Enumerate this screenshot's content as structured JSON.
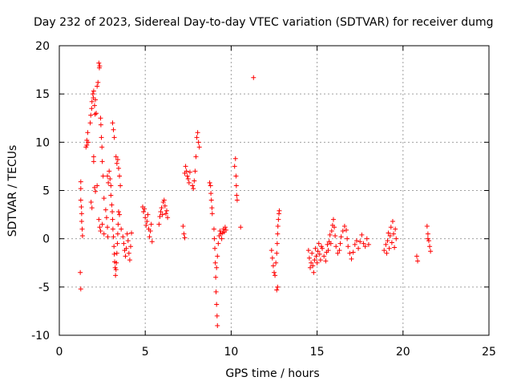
{
  "chart_data": {
    "type": "scatter",
    "title": "Day 232 of 2023, Sidereal Day-to-day VTEC variation (SDTVAR) for receiver dumg",
    "xlabel": "GPS time / hours",
    "ylabel": "SDTVAR / TECUs",
    "xlim": [
      0,
      25
    ],
    "ylim": [
      -10,
      20
    ],
    "xticks": [
      0,
      5,
      10,
      15,
      20,
      25
    ],
    "yticks": [
      -10,
      -5,
      0,
      5,
      10,
      15,
      20
    ],
    "xtick_labels": [
      "0",
      "5",
      "10",
      "15",
      "20",
      "25"
    ],
    "ytick_labels": [
      "-10",
      "-5",
      "0",
      "5",
      "10",
      "15",
      "20"
    ],
    "grid": true,
    "marker": "+",
    "color": "#ff0000",
    "series": [
      {
        "name": "SDTVAR",
        "points": [
          [
            1.25,
            5.9
          ],
          [
            1.25,
            5.2
          ],
          [
            1.25,
            4.0
          ],
          [
            1.28,
            3.3
          ],
          [
            1.3,
            2.6
          ],
          [
            1.3,
            1.8
          ],
          [
            1.33,
            1.0
          ],
          [
            1.35,
            0.3
          ],
          [
            1.22,
            -3.5
          ],
          [
            1.25,
            -5.2
          ],
          [
            1.55,
            9.5
          ],
          [
            1.6,
            10.2
          ],
          [
            1.6,
            9.7
          ],
          [
            1.65,
            11.0
          ],
          [
            1.68,
            10.0
          ],
          [
            1.8,
            12.0
          ],
          [
            1.83,
            12.8
          ],
          [
            1.88,
            13.5
          ],
          [
            1.9,
            14.2
          ],
          [
            1.95,
            15.0
          ],
          [
            1.98,
            14.6
          ],
          [
            2.0,
            15.3
          ],
          [
            2.05,
            13.8
          ],
          [
            2.08,
            12.9
          ],
          [
            2.1,
            14.4
          ],
          [
            2.15,
            13.0
          ],
          [
            2.2,
            15.8
          ],
          [
            2.25,
            16.2
          ],
          [
            2.3,
            18.2
          ],
          [
            2.33,
            17.7
          ],
          [
            2.35,
            17.9
          ],
          [
            2.4,
            12.5
          ],
          [
            2.42,
            11.8
          ],
          [
            2.45,
            10.5
          ],
          [
            2.48,
            9.5
          ],
          [
            2.5,
            8.0
          ],
          [
            2.55,
            6.5
          ],
          [
            1.85,
            3.8
          ],
          [
            1.9,
            3.2
          ],
          [
            2.0,
            8.5
          ],
          [
            2.0,
            8.0
          ],
          [
            2.05,
            5.3
          ],
          [
            2.1,
            4.9
          ],
          [
            2.2,
            5.5
          ],
          [
            2.3,
            2.0
          ],
          [
            2.35,
            1.2
          ],
          [
            2.4,
            0.8
          ],
          [
            2.5,
            1.5
          ],
          [
            2.6,
            0.5
          ],
          [
            2.6,
            4.2
          ],
          [
            2.7,
            3.0
          ],
          [
            2.75,
            2.2
          ],
          [
            2.8,
            1.2
          ],
          [
            2.82,
            0.2
          ],
          [
            2.8,
            6.5
          ],
          [
            2.85,
            5.8
          ],
          [
            2.9,
            7.0
          ],
          [
            2.95,
            6.2
          ],
          [
            3.0,
            5.5
          ],
          [
            3.0,
            4.5
          ],
          [
            3.05,
            3.5
          ],
          [
            3.08,
            2.8
          ],
          [
            3.1,
            2.0
          ],
          [
            3.12,
            1.0
          ],
          [
            3.15,
            0.2
          ],
          [
            3.18,
            -0.8
          ],
          [
            3.2,
            -1.6
          ],
          [
            3.22,
            -2.4
          ],
          [
            3.25,
            -3.0
          ],
          [
            3.27,
            -3.8
          ],
          [
            3.3,
            -3.2
          ],
          [
            3.32,
            -2.5
          ],
          [
            3.35,
            -1.5
          ],
          [
            3.38,
            -0.5
          ],
          [
            3.4,
            0.5
          ],
          [
            3.42,
            1.5
          ],
          [
            3.45,
            2.8
          ],
          [
            3.1,
            12.0
          ],
          [
            3.15,
            11.3
          ],
          [
            3.2,
            10.5
          ],
          [
            3.3,
            8.5
          ],
          [
            3.35,
            7.8
          ],
          [
            3.4,
            8.2
          ],
          [
            3.45,
            7.3
          ],
          [
            3.5,
            6.5
          ],
          [
            3.55,
            5.5
          ],
          [
            3.5,
            2.5
          ],
          [
            3.6,
            1.0
          ],
          [
            3.7,
            0.2
          ],
          [
            3.75,
            -0.5
          ],
          [
            3.8,
            -1.2
          ],
          [
            3.85,
            -1.8
          ],
          [
            3.9,
            -1.0
          ],
          [
            3.95,
            0.5
          ],
          [
            4.0,
            -0.2
          ],
          [
            4.05,
            -1.5
          ],
          [
            4.1,
            -2.2
          ],
          [
            4.15,
            -0.8
          ],
          [
            4.2,
            0.6
          ],
          [
            4.85,
            3.3
          ],
          [
            4.9,
            2.8
          ],
          [
            4.95,
            3.1
          ],
          [
            5.0,
            2.2
          ],
          [
            5.05,
            1.4
          ],
          [
            5.1,
            1.8
          ],
          [
            5.15,
            2.5
          ],
          [
            5.2,
            1.0
          ],
          [
            5.25,
            0.2
          ],
          [
            5.3,
            0.8
          ],
          [
            5.35,
            1.5
          ],
          [
            5.4,
            -0.3
          ],
          [
            5.8,
            1.5
          ],
          [
            5.85,
            2.3
          ],
          [
            5.9,
            2.8
          ],
          [
            5.95,
            3.2
          ],
          [
            6.0,
            2.5
          ],
          [
            6.05,
            3.8
          ],
          [
            6.1,
            4.0
          ],
          [
            6.15,
            3.4
          ],
          [
            6.2,
            2.6
          ],
          [
            6.25,
            2.9
          ],
          [
            6.3,
            2.2
          ],
          [
            7.2,
            1.3
          ],
          [
            7.25,
            0.5
          ],
          [
            7.3,
            0.1
          ],
          [
            7.3,
            6.8
          ],
          [
            7.35,
            7.5
          ],
          [
            7.4,
            7.0
          ],
          [
            7.45,
            6.5
          ],
          [
            7.5,
            6.2
          ],
          [
            7.55,
            5.8
          ],
          [
            7.6,
            6.9
          ],
          [
            7.75,
            5.5
          ],
          [
            7.8,
            5.2
          ],
          [
            7.85,
            6.0
          ],
          [
            7.9,
            7.0
          ],
          [
            7.95,
            8.5
          ],
          [
            8.0,
            10.5
          ],
          [
            8.05,
            11.0
          ],
          [
            8.1,
            10.0
          ],
          [
            8.15,
            9.5
          ],
          [
            8.75,
            5.8
          ],
          [
            8.8,
            5.5
          ],
          [
            8.82,
            4.7
          ],
          [
            8.85,
            4.0
          ],
          [
            8.88,
            3.2
          ],
          [
            8.9,
            2.6
          ],
          [
            9.0,
            1.0
          ],
          [
            9.02,
            0.0
          ],
          [
            9.05,
            -1.0
          ],
          [
            9.08,
            -2.5
          ],
          [
            9.1,
            -4.0
          ],
          [
            9.12,
            -5.5
          ],
          [
            9.15,
            -6.8
          ],
          [
            9.18,
            -8.0
          ],
          [
            9.2,
            -9.0
          ],
          [
            9.15,
            -3.0
          ],
          [
            9.2,
            -1.8
          ],
          [
            9.25,
            -0.5
          ],
          [
            9.3,
            0.3
          ],
          [
            9.35,
            0.8
          ],
          [
            9.4,
            0.5
          ],
          [
            9.45,
            0.0
          ],
          [
            9.5,
            0.6
          ],
          [
            9.55,
            1.0
          ],
          [
            9.6,
            0.7
          ],
          [
            9.65,
            1.2
          ],
          [
            9.7,
            0.9
          ],
          [
            10.2,
            7.5
          ],
          [
            10.25,
            8.3
          ],
          [
            10.28,
            6.5
          ],
          [
            10.3,
            5.5
          ],
          [
            10.32,
            4.5
          ],
          [
            10.35,
            4.0
          ],
          [
            10.55,
            1.2
          ],
          [
            11.3,
            16.7
          ],
          [
            12.35,
            -1.2
          ],
          [
            12.4,
            -2.0
          ],
          [
            12.45,
            -2.8
          ],
          [
            12.5,
            -3.5
          ],
          [
            12.55,
            -3.8
          ],
          [
            12.6,
            -2.5
          ],
          [
            12.65,
            -1.5
          ],
          [
            12.68,
            -0.5
          ],
          [
            12.7,
            0.5
          ],
          [
            12.72,
            1.3
          ],
          [
            12.75,
            2.0
          ],
          [
            12.78,
            2.6
          ],
          [
            12.8,
            2.9
          ],
          [
            12.65,
            -5.3
          ],
          [
            12.7,
            -5.0
          ],
          [
            14.5,
            -1.2
          ],
          [
            14.55,
            -2.0
          ],
          [
            14.6,
            -3.0
          ],
          [
            14.65,
            -2.5
          ],
          [
            14.7,
            -1.5
          ],
          [
            14.75,
            -2.8
          ],
          [
            14.8,
            -3.5
          ],
          [
            14.85,
            -2.2
          ],
          [
            14.9,
            -1.0
          ],
          [
            14.95,
            -1.8
          ],
          [
            15.0,
            -2.5
          ],
          [
            15.05,
            -1.3
          ],
          [
            15.1,
            -0.5
          ],
          [
            15.15,
            -1.6
          ],
          [
            15.2,
            -2.2
          ],
          [
            15.25,
            -0.8
          ],
          [
            15.3,
            -1.0
          ],
          [
            15.4,
            -1.8
          ],
          [
            15.5,
            -2.3
          ],
          [
            15.55,
            -1.4
          ],
          [
            15.6,
            -0.6
          ],
          [
            15.65,
            -1.2
          ],
          [
            15.7,
            -0.3
          ],
          [
            15.75,
            0.4
          ],
          [
            15.8,
            -0.5
          ],
          [
            15.85,
            0.8
          ],
          [
            15.9,
            1.4
          ],
          [
            15.95,
            2.0
          ],
          [
            16.0,
            1.2
          ],
          [
            16.05,
            0.3
          ],
          [
            16.1,
            -0.8
          ],
          [
            16.2,
            -1.5
          ],
          [
            16.3,
            -1.2
          ],
          [
            16.35,
            -0.5
          ],
          [
            16.4,
            0.2
          ],
          [
            16.5,
            0.8
          ],
          [
            16.6,
            1.3
          ],
          [
            16.7,
            0.9
          ],
          [
            16.75,
            0.0
          ],
          [
            16.8,
            -0.8
          ],
          [
            16.9,
            -1.5
          ],
          [
            17.0,
            -2.1
          ],
          [
            17.1,
            -1.4
          ],
          [
            17.2,
            -0.6
          ],
          [
            17.3,
            -0.2
          ],
          [
            17.4,
            -1.0
          ],
          [
            17.5,
            -0.3
          ],
          [
            17.6,
            0.4
          ],
          [
            17.7,
            -0.5
          ],
          [
            17.8,
            -0.8
          ],
          [
            17.9,
            0.0
          ],
          [
            18.0,
            -0.6
          ],
          [
            18.9,
            -1.2
          ],
          [
            19.0,
            -0.6
          ],
          [
            19.05,
            -1.5
          ],
          [
            19.1,
            -0.2
          ],
          [
            19.15,
            0.6
          ],
          [
            19.2,
            -1.0
          ],
          [
            19.25,
            0.3
          ],
          [
            19.3,
            1.2
          ],
          [
            19.35,
            -0.4
          ],
          [
            19.4,
            1.8
          ],
          [
            19.45,
            0.5
          ],
          [
            19.5,
            -0.9
          ],
          [
            19.55,
            1.0
          ],
          [
            19.6,
            0.0
          ],
          [
            20.8,
            -1.8
          ],
          [
            20.85,
            -2.3
          ],
          [
            21.4,
            1.3
          ],
          [
            21.45,
            0.5
          ],
          [
            21.5,
            -0.2
          ],
          [
            21.55,
            -0.8
          ],
          [
            21.6,
            -1.3
          ],
          [
            21.45,
            0.0
          ]
        ]
      }
    ]
  }
}
